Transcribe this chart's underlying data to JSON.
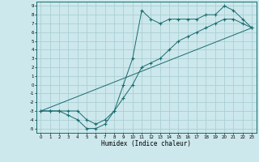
{
  "xlabel": "Humidex (Indice chaleur)",
  "background_color": "#cce8ec",
  "grid_color": "#aacfd4",
  "line_color": "#1a6b6e",
  "xlim": [
    -0.5,
    23.5
  ],
  "ylim": [
    -5.5,
    9.5
  ],
  "xticks": [
    0,
    1,
    2,
    3,
    4,
    5,
    6,
    7,
    8,
    9,
    10,
    11,
    12,
    13,
    14,
    15,
    16,
    17,
    18,
    19,
    20,
    21,
    22,
    23
  ],
  "yticks": [
    -5,
    -4,
    -3,
    -2,
    -1,
    0,
    1,
    2,
    3,
    4,
    5,
    6,
    7,
    8,
    9
  ],
  "line1_x": [
    0,
    1,
    2,
    3,
    4,
    5,
    6,
    7,
    8,
    9,
    10,
    11,
    12,
    13,
    14,
    15,
    16,
    17,
    18,
    19,
    20,
    21,
    22,
    23
  ],
  "line1_y": [
    -3,
    -3,
    -3,
    -3.5,
    -4,
    -5,
    -5,
    -4.5,
    -3,
    0,
    3,
    8.5,
    7.5,
    7,
    7.5,
    7.5,
    7.5,
    7.5,
    8,
    8,
    9,
    8.5,
    7.5,
    6.5
  ],
  "line2_x": [
    0,
    1,
    2,
    3,
    4,
    5,
    6,
    7,
    8,
    9,
    10,
    11,
    12,
    13,
    14,
    15,
    16,
    17,
    18,
    19,
    20,
    21,
    22,
    23
  ],
  "line2_y": [
    -3,
    -3,
    -3,
    -3,
    -3,
    -4,
    -4.5,
    -4,
    -3,
    -1.5,
    0,
    2,
    2.5,
    3,
    4,
    5,
    5.5,
    6,
    6.5,
    7,
    7.5,
    7.5,
    7,
    6.5
  ],
  "line3_x": [
    0,
    23
  ],
  "line3_y": [
    -3,
    6.5
  ]
}
